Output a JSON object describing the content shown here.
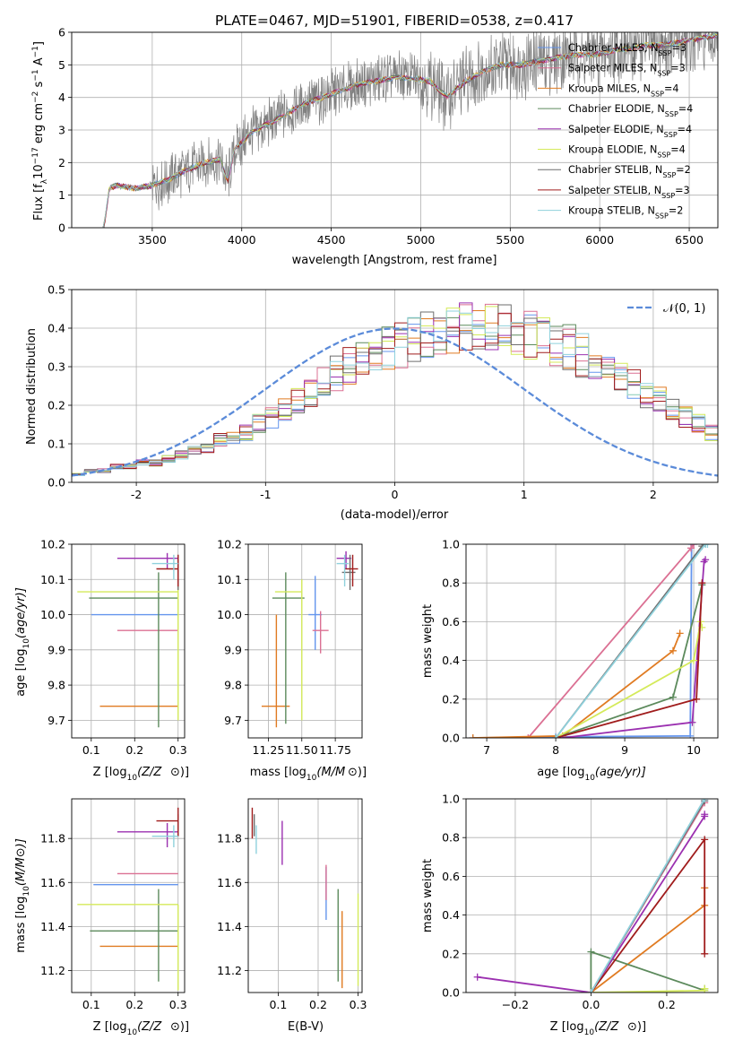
{
  "colors": {
    "chabrier_miles": "#6495ed",
    "salpeter_miles": "#db7093",
    "kroupa_miles": "#e07b22",
    "chabrier_elodie": "#5c8a5c",
    "salpeter_elodie": "#9b30b0",
    "kroupa_elodie": "#d4ea5a",
    "chabrier_stelib": "#6e6e6e",
    "salpeter_stelib": "#a01c1c",
    "kroupa_stelib": "#8fd1dc",
    "data_gray": "#808080",
    "gauss": "#5b8bd9",
    "grid": "#b0b0b0"
  },
  "chart_data": [
    {
      "id": "spectrum",
      "type": "line",
      "title": "PLATE=0467, MJD=51901, FIBERID=0538, z=0.417",
      "xlabel": "wavelength [Angstrom, rest frame]",
      "ylabel": "Flux [f",
      "xlim": [
        3050,
        6660
      ],
      "ylim": [
        0,
        6
      ],
      "xticks": [
        3500,
        4000,
        4500,
        5000,
        5500,
        6000,
        6500
      ],
      "yticks": [
        0,
        1,
        2,
        3,
        4,
        5,
        6
      ],
      "legend_position": "top-right",
      "continuum": {
        "x": [
          3230,
          3260,
          3300,
          3400,
          3500,
          3600,
          3700,
          3800,
          3880,
          3920,
          3960,
          4050,
          4150,
          4250,
          4350,
          4450,
          4550,
          4650,
          4750,
          4850,
          4950,
          5050,
          5150,
          5250,
          5350,
          5450,
          5550,
          5650,
          5750,
          5850,
          5950,
          6050,
          6150,
          6250,
          6350,
          6450,
          6550,
          6650
        ],
        "y": [
          0.0,
          1.2,
          1.3,
          1.2,
          1.3,
          1.5,
          1.8,
          2.0,
          2.1,
          1.4,
          2.4,
          2.9,
          3.2,
          3.5,
          3.8,
          4.0,
          4.2,
          4.4,
          4.5,
          4.6,
          4.6,
          4.5,
          4.0,
          4.5,
          4.8,
          5.0,
          5.0,
          5.1,
          5.2,
          5.3,
          5.3,
          5.4,
          5.5,
          5.6,
          5.6,
          5.7,
          5.8,
          5.9
        ]
      },
      "series": [
        {
          "name": "Chabrier MILES, N",
          "sub": "SSP",
          "suffix": "=3",
          "color_key": "chabrier_miles"
        },
        {
          "name": "Salpeter MILES, N",
          "sub": "SSP",
          "suffix": "=3",
          "color_key": "salpeter_miles"
        },
        {
          "name": "Kroupa MILES, N",
          "sub": "SSP",
          "suffix": "=4",
          "color_key": "kroupa_miles"
        },
        {
          "name": "Chabrier ELODIE, N",
          "sub": "SSP",
          "suffix": "=4",
          "color_key": "chabrier_elodie"
        },
        {
          "name": "Salpeter ELODIE, N",
          "sub": "SSP",
          "suffix": "=4",
          "color_key": "salpeter_elodie"
        },
        {
          "name": "Kroupa ELODIE, N",
          "sub": "SSP",
          "suffix": "=4",
          "color_key": "kroupa_elodie"
        },
        {
          "name": "Chabrier STELIB, N",
          "sub": "SSP",
          "suffix": "=2",
          "color_key": "chabrier_stelib"
        },
        {
          "name": "Salpeter STELIB, N",
          "sub": "SSP",
          "suffix": "=3",
          "color_key": "salpeter_stelib"
        },
        {
          "name": "Kroupa STELIB, N",
          "sub": "SSP",
          "suffix": "=2",
          "color_key": "kroupa_stelib"
        }
      ]
    },
    {
      "id": "residuals",
      "type": "area",
      "xlabel": "(data-model)/error",
      "ylabel": "Normed distribution",
      "xlim": [
        -2.5,
        2.5
      ],
      "ylim": [
        0,
        0.5
      ],
      "xticks": [
        -2,
        -1,
        0,
        1,
        2
      ],
      "yticks": [
        0.0,
        0.1,
        0.2,
        0.3,
        0.4,
        0.5
      ],
      "legend": "𝒩(0, 1)",
      "legend_position": "top-right",
      "bin_width": 0.1,
      "bin_start": -2.5,
      "hist_values": [
        0.02,
        0.03,
        0.03,
        0.04,
        0.04,
        0.05,
        0.05,
        0.06,
        0.07,
        0.08,
        0.09,
        0.11,
        0.12,
        0.13,
        0.15,
        0.17,
        0.19,
        0.21,
        0.23,
        0.26,
        0.28,
        0.3,
        0.32,
        0.33,
        0.35,
        0.36,
        0.37,
        0.38,
        0.39,
        0.39,
        0.4,
        0.4,
        0.4,
        0.4,
        0.39,
        0.38,
        0.37,
        0.36,
        0.35,
        0.33,
        0.31,
        0.29,
        0.27,
        0.25,
        0.23,
        0.21,
        0.19,
        0.17,
        0.15,
        0.13
      ]
    },
    {
      "id": "age_vs_Z",
      "type": "scatter",
      "xlabel": "Z [log",
      "ylabel": "age  [log",
      "xlim": [
        0.055,
        0.315
      ],
      "ylim": [
        9.65,
        10.2
      ],
      "xticks": [
        0.1,
        0.2,
        0.3
      ],
      "yticks": [
        9.7,
        9.8,
        9.9,
        10.0,
        10.1,
        10.2
      ],
      "points": [
        {
          "color_key": "chabrier_miles",
          "x": 0.2,
          "xerr": [
            0.1,
            0.3
          ],
          "y": 10.0,
          "yerr": [
            10.0,
            10.0
          ]
        },
        {
          "color_key": "salpeter_miles",
          "x": 0.23,
          "xerr": [
            0.16,
            0.3
          ],
          "y": 9.955,
          "yerr": [
            9.955,
            9.955
          ]
        },
        {
          "color_key": "kroupa_miles",
          "x": 0.21,
          "xerr": [
            0.12,
            0.3
          ],
          "y": 9.74,
          "yerr": [
            9.74,
            9.74
          ]
        },
        {
          "color_key": "chabrier_elodie",
          "x": 0.255,
          "xerr": [
            0.095,
            0.3
          ],
          "y": 10.047,
          "yerr": [
            9.68,
            10.12
          ]
        },
        {
          "color_key": "salpeter_elodie",
          "x": 0.275,
          "xerr": [
            0.16,
            0.3
          ],
          "y": 10.16,
          "yerr": [
            10.13,
            10.175
          ]
        },
        {
          "color_key": "kroupa_elodie",
          "x": 0.3,
          "xerr": [
            0.068,
            0.3
          ],
          "y": 10.065,
          "yerr": [
            9.7,
            10.12
          ]
        },
        {
          "color_key": "chabrier_stelib",
          "x": 0.3,
          "xerr": [
            0.3,
            0.3
          ],
          "y": 10.12,
          "yerr": [
            10.07,
            10.17
          ]
        },
        {
          "color_key": "salpeter_stelib",
          "x": 0.3,
          "xerr": [
            0.25,
            0.3
          ],
          "y": 10.13,
          "yerr": [
            10.08,
            10.17
          ]
        },
        {
          "color_key": "kroupa_stelib",
          "x": 0.29,
          "xerr": [
            0.24,
            0.3
          ],
          "y": 10.145,
          "yerr": [
            10.1,
            10.17
          ]
        }
      ]
    },
    {
      "id": "age_vs_mass",
      "type": "scatter",
      "xlabel": "mass [log",
      "xlim": [
        11.1,
        11.95
      ],
      "ylim": [
        9.65,
        10.2
      ],
      "xticks": [
        11.25,
        11.5,
        11.75
      ],
      "xtick_labels": [
        "11.25",
        "11.50",
        "11.75"
      ],
      "yticks": [
        9.7,
        9.8,
        9.9,
        10.0,
        10.1,
        10.2
      ],
      "points": [
        {
          "color_key": "chabrier_miles",
          "x": 11.6,
          "xerr": [
            11.55,
            11.65
          ],
          "y": 10.0,
          "yerr": [
            9.9,
            10.11
          ]
        },
        {
          "color_key": "salpeter_miles",
          "x": 11.64,
          "xerr": [
            11.58,
            11.7
          ],
          "y": 9.955,
          "yerr": [
            9.89,
            10.01
          ]
        },
        {
          "color_key": "kroupa_miles",
          "x": 11.31,
          "xerr": [
            11.2,
            11.41
          ],
          "y": 9.74,
          "yerr": [
            9.68,
            10.0
          ]
        },
        {
          "color_key": "chabrier_elodie",
          "x": 11.38,
          "xerr": [
            11.28,
            11.52
          ],
          "y": 10.047,
          "yerr": [
            9.69,
            10.12
          ]
        },
        {
          "color_key": "salpeter_elodie",
          "x": 11.83,
          "xerr": [
            11.76,
            11.87
          ],
          "y": 10.16,
          "yerr": [
            10.13,
            10.18
          ]
        },
        {
          "color_key": "kroupa_elodie",
          "x": 11.5,
          "xerr": [
            11.3,
            11.5
          ],
          "y": 10.065,
          "yerr": [
            9.7,
            10.1
          ]
        },
        {
          "color_key": "chabrier_stelib",
          "x": 11.86,
          "xerr": [
            11.8,
            11.9
          ],
          "y": 10.12,
          "yerr": [
            10.07,
            10.17
          ]
        },
        {
          "color_key": "salpeter_stelib",
          "x": 11.88,
          "xerr": [
            11.82,
            11.92
          ],
          "y": 10.13,
          "yerr": [
            10.08,
            10.17
          ]
        },
        {
          "color_key": "kroupa_stelib",
          "x": 11.82,
          "xerr": [
            11.76,
            11.85
          ],
          "y": 10.145,
          "yerr": [
            10.08,
            10.17
          ]
        }
      ]
    },
    {
      "id": "mass_weight_vs_age",
      "type": "line",
      "xlabel": "age  [log",
      "ylabel": "mass weight",
      "xlim": [
        6.7,
        10.35
      ],
      "ylim": [
        0,
        1
      ],
      "xticks": [
        7,
        8,
        9,
        10
      ],
      "yticks": [
        0.0,
        0.2,
        0.4,
        0.6,
        0.8,
        1.0
      ],
      "series": [
        {
          "color_key": "chabrier_miles",
          "x": [
            6.8,
            8.0,
            9.95,
            9.97,
            10.0
          ],
          "y": [
            0.0,
            0.005,
            0.01,
            1.0,
            1.0
          ]
        },
        {
          "color_key": "salpeter_miles",
          "x": [
            7.6,
            9.96,
            10.0
          ],
          "y": [
            0.0,
            0.98,
            1.0
          ]
        },
        {
          "color_key": "kroupa_miles",
          "x": [
            6.8,
            8.1,
            9.7,
            9.8
          ],
          "y": [
            0.0,
            0.01,
            0.45,
            0.54
          ]
        },
        {
          "color_key": "chabrier_elodie",
          "x": [
            8.0,
            9.7,
            10.12,
            10.12
          ],
          "y": [
            0.0,
            0.21,
            0.79,
            0.79
          ]
        },
        {
          "color_key": "salpeter_elodie",
          "x": [
            8.1,
            9.98,
            10.15,
            10.17
          ],
          "y": [
            0.0,
            0.08,
            0.91,
            0.92
          ]
        },
        {
          "color_key": "kroupa_elodie",
          "x": [
            8.0,
            10.0,
            10.1,
            10.12
          ],
          "y": [
            0.0,
            0.4,
            0.6,
            0.57
          ]
        },
        {
          "color_key": "chabrier_stelib",
          "x": [
            8.0,
            10.12,
            10.17
          ],
          "y": [
            0.0,
            0.99,
            1.0
          ]
        },
        {
          "color_key": "salpeter_stelib",
          "x": [
            8.0,
            10.04,
            10.12
          ],
          "y": [
            0.0,
            0.2,
            0.8
          ]
        },
        {
          "color_key": "kroupa_stelib",
          "x": [
            8.0,
            10.17,
            10.2
          ],
          "y": [
            0.0,
            1.0,
            1.0
          ]
        }
      ]
    },
    {
      "id": "mass_vs_Z",
      "type": "scatter",
      "xlabel": "Z [log",
      "ylabel": "mass [log",
      "xlim": [
        0.055,
        0.315
      ],
      "ylim": [
        11.1,
        11.98
      ],
      "xticks": [
        0.1,
        0.2,
        0.3
      ],
      "yticks": [
        11.2,
        11.4,
        11.6,
        11.8
      ],
      "points": [
        {
          "color_key": "chabrier_miles",
          "x": 0.2,
          "xerr": [
            0.105,
            0.3
          ],
          "y": 11.59,
          "yerr": [
            11.59,
            11.59
          ]
        },
        {
          "color_key": "salpeter_miles",
          "x": 0.23,
          "xerr": [
            0.16,
            0.3
          ],
          "y": 11.64,
          "yerr": [
            11.64,
            11.64
          ]
        },
        {
          "color_key": "kroupa_miles",
          "x": 0.21,
          "xerr": [
            0.12,
            0.3
          ],
          "y": 11.31,
          "yerr": [
            11.31,
            11.31
          ]
        },
        {
          "color_key": "chabrier_elodie",
          "x": 0.255,
          "xerr": [
            0.097,
            0.3
          ],
          "y": 11.38,
          "yerr": [
            11.15,
            11.57
          ]
        },
        {
          "color_key": "salpeter_elodie",
          "x": 0.275,
          "xerr": [
            0.16,
            0.3
          ],
          "y": 11.83,
          "yerr": [
            11.76,
            11.87
          ]
        },
        {
          "color_key": "kroupa_elodie",
          "x": 0.3,
          "xerr": [
            0.068,
            0.3
          ],
          "y": 11.5,
          "yerr": [
            11.11,
            11.5
          ]
        },
        {
          "color_key": "chabrier_stelib",
          "x": 0.3,
          "xerr": [
            0.3,
            0.3
          ],
          "y": 11.86,
          "yerr": [
            11.81,
            11.91
          ]
        },
        {
          "color_key": "salpeter_stelib",
          "x": 0.3,
          "xerr": [
            0.25,
            0.3
          ],
          "y": 11.88,
          "yerr": [
            11.81,
            11.94
          ]
        },
        {
          "color_key": "kroupa_stelib",
          "x": 0.29,
          "xerr": [
            0.24,
            0.3
          ],
          "y": 11.81,
          "yerr": [
            11.76,
            11.86
          ]
        }
      ]
    },
    {
      "id": "mass_vs_ebv",
      "type": "scatter",
      "xlabel": "E(B-V)",
      "xlim": [
        0.025,
        0.31
      ],
      "ylim": [
        11.1,
        11.98
      ],
      "xticks": [
        0.1,
        0.2,
        0.3
      ],
      "yticks": [
        11.2,
        11.4,
        11.6,
        11.8
      ],
      "points": [
        {
          "color_key": "chabrier_miles",
          "x": 0.22,
          "y": 11.59,
          "yerr": [
            11.43,
            11.67
          ]
        },
        {
          "color_key": "salpeter_miles",
          "x": 0.22,
          "y": 11.64,
          "yerr": [
            11.52,
            11.68
          ]
        },
        {
          "color_key": "kroupa_miles",
          "x": 0.26,
          "y": 11.31,
          "yerr": [
            11.12,
            11.47
          ]
        },
        {
          "color_key": "chabrier_elodie",
          "x": 0.25,
          "y": 11.38,
          "yerr": [
            11.15,
            11.57
          ]
        },
        {
          "color_key": "salpeter_elodie",
          "x": 0.11,
          "y": 11.83,
          "yerr": [
            11.68,
            11.88
          ]
        },
        {
          "color_key": "kroupa_elodie",
          "x": 0.3,
          "y": 11.5,
          "yerr": [
            11.13,
            11.55
          ]
        },
        {
          "color_key": "chabrier_stelib",
          "x": 0.04,
          "y": 11.86,
          "yerr": [
            11.81,
            11.91
          ]
        },
        {
          "color_key": "salpeter_stelib",
          "x": 0.035,
          "y": 11.88,
          "yerr": [
            11.8,
            11.94
          ]
        },
        {
          "color_key": "kroupa_stelib",
          "x": 0.045,
          "y": 11.81,
          "yerr": [
            11.73,
            11.86
          ]
        }
      ]
    },
    {
      "id": "mass_weight_vs_Z",
      "type": "line",
      "xlabel": "Z [log",
      "ylabel": "mass weight",
      "xlim": [
        -0.33,
        0.335
      ],
      "ylim": [
        0,
        1
      ],
      "xticks": [
        -0.2,
        0.0,
        0.2
      ],
      "yticks": [
        0.0,
        0.2,
        0.4,
        0.6,
        0.8,
        1.0
      ],
      "series": [
        {
          "color_key": "chabrier_miles",
          "x": [
            0.0,
            0.3,
            0.3
          ],
          "y": [
            0.0,
            0.99,
            1.0
          ]
        },
        {
          "color_key": "salpeter_miles",
          "x": [
            0.0,
            0.3
          ],
          "y": [
            0.0,
            0.98
          ]
        },
        {
          "color_key": "kroupa_miles",
          "x": [
            0.0,
            0.3,
            0.3,
            0.3
          ],
          "y": [
            0.0,
            0.45,
            0.54,
            0.54
          ]
        },
        {
          "color_key": "chabrier_elodie",
          "x": [
            0.0,
            0.0,
            0.3,
            0.3
          ],
          "y": [
            0.0,
            0.21,
            0.01,
            0.02
          ]
        },
        {
          "color_key": "salpeter_elodie",
          "x": [
            -0.3,
            0.0,
            0.3,
            0.3
          ],
          "y": [
            0.08,
            0.0,
            0.91,
            0.92
          ]
        },
        {
          "color_key": "kroupa_elodie",
          "x": [
            0.0,
            0.3,
            0.3
          ],
          "y": [
            0.0,
            0.01,
            0.02
          ]
        },
        {
          "color_key": "chabrier_stelib",
          "x": [
            0.0,
            0.3
          ],
          "y": [
            0.0,
            0.99
          ]
        },
        {
          "color_key": "salpeter_stelib",
          "x": [
            0.0,
            0.3,
            0.3
          ],
          "y": [
            0.0,
            0.79,
            0.2
          ]
        },
        {
          "color_key": "kroupa_stelib",
          "x": [
            0.0,
            0.3
          ],
          "y": [
            0.0,
            1.0
          ]
        }
      ]
    }
  ]
}
